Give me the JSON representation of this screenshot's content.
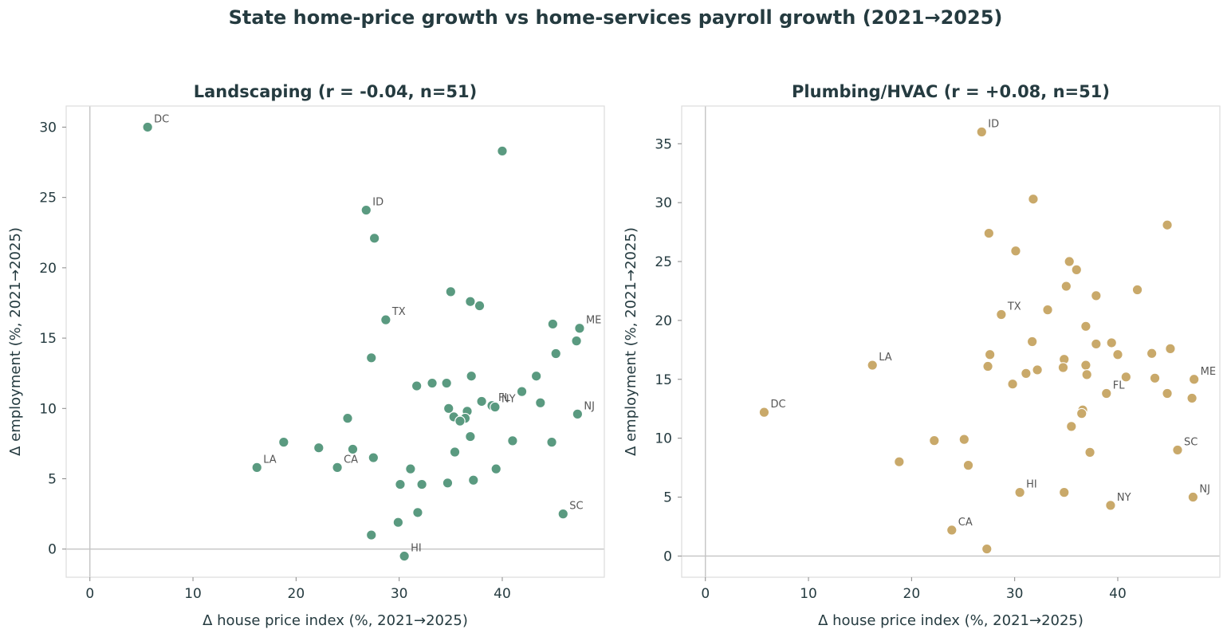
{
  "suptitle": "State home-price growth vs home-services payroll growth (2021→2025)",
  "chart_data": [
    {
      "type": "scatter",
      "title": "Landscaping  (r = -0.04, n=51)",
      "xlabel": "Δ house price index (%, 2021→2025)",
      "ylabel": "Δ employment (%, 2021→2025)",
      "xlim": [
        -2.3,
        49.9
      ],
      "ylim": [
        -2.0,
        31.5
      ],
      "xticks": [
        0,
        10,
        20,
        30,
        40
      ],
      "yticks": [
        0,
        5,
        10,
        15,
        20,
        25,
        30
      ],
      "color": "#5a9a80",
      "points": [
        {
          "x": 5.6,
          "y": 30.0,
          "label": "DC"
        },
        {
          "x": 40.0,
          "y": 28.3,
          "label": ""
        },
        {
          "x": 26.8,
          "y": 24.1,
          "label": "ID"
        },
        {
          "x": 27.6,
          "y": 22.1,
          "label": ""
        },
        {
          "x": 35.0,
          "y": 18.3,
          "label": ""
        },
        {
          "x": 36.9,
          "y": 17.6,
          "label": ""
        },
        {
          "x": 37.8,
          "y": 17.3,
          "label": ""
        },
        {
          "x": 28.7,
          "y": 16.3,
          "label": "TX"
        },
        {
          "x": 44.9,
          "y": 16.0,
          "label": ""
        },
        {
          "x": 47.5,
          "y": 15.7,
          "label": "ME"
        },
        {
          "x": 47.2,
          "y": 14.8,
          "label": ""
        },
        {
          "x": 45.2,
          "y": 13.9,
          "label": ""
        },
        {
          "x": 27.3,
          "y": 13.6,
          "label": ""
        },
        {
          "x": 43.3,
          "y": 12.3,
          "label": ""
        },
        {
          "x": 37.0,
          "y": 12.3,
          "label": ""
        },
        {
          "x": 33.2,
          "y": 11.8,
          "label": ""
        },
        {
          "x": 34.6,
          "y": 11.8,
          "label": ""
        },
        {
          "x": 31.7,
          "y": 11.6,
          "label": ""
        },
        {
          "x": 41.9,
          "y": 11.2,
          "label": ""
        },
        {
          "x": 38.0,
          "y": 10.5,
          "label": ""
        },
        {
          "x": 43.7,
          "y": 10.4,
          "label": ""
        },
        {
          "x": 39.0,
          "y": 10.2,
          "label": "FL"
        },
        {
          "x": 39.3,
          "y": 10.1,
          "label": "NY"
        },
        {
          "x": 34.8,
          "y": 10.0,
          "label": ""
        },
        {
          "x": 36.6,
          "y": 9.8,
          "label": ""
        },
        {
          "x": 47.3,
          "y": 9.6,
          "label": "NJ"
        },
        {
          "x": 35.3,
          "y": 9.4,
          "label": ""
        },
        {
          "x": 25.0,
          "y": 9.3,
          "label": ""
        },
        {
          "x": 36.4,
          "y": 9.3,
          "label": ""
        },
        {
          "x": 35.9,
          "y": 9.1,
          "label": ""
        },
        {
          "x": 36.9,
          "y": 8.0,
          "label": ""
        },
        {
          "x": 41.0,
          "y": 7.7,
          "label": ""
        },
        {
          "x": 18.8,
          "y": 7.6,
          "label": ""
        },
        {
          "x": 44.8,
          "y": 7.6,
          "label": ""
        },
        {
          "x": 22.2,
          "y": 7.2,
          "label": ""
        },
        {
          "x": 25.5,
          "y": 7.1,
          "label": ""
        },
        {
          "x": 35.4,
          "y": 6.9,
          "label": ""
        },
        {
          "x": 27.5,
          "y": 6.5,
          "label": ""
        },
        {
          "x": 16.2,
          "y": 5.8,
          "label": "LA"
        },
        {
          "x": 24.0,
          "y": 5.8,
          "label": "CA"
        },
        {
          "x": 39.4,
          "y": 5.7,
          "label": ""
        },
        {
          "x": 31.1,
          "y": 5.7,
          "label": ""
        },
        {
          "x": 37.2,
          "y": 4.9,
          "label": ""
        },
        {
          "x": 34.7,
          "y": 4.7,
          "label": ""
        },
        {
          "x": 32.2,
          "y": 4.6,
          "label": ""
        },
        {
          "x": 30.1,
          "y": 4.6,
          "label": ""
        },
        {
          "x": 31.8,
          "y": 2.6,
          "label": ""
        },
        {
          "x": 45.9,
          "y": 2.5,
          "label": "SC"
        },
        {
          "x": 29.9,
          "y": 1.9,
          "label": ""
        },
        {
          "x": 27.3,
          "y": 1.0,
          "label": ""
        },
        {
          "x": 30.5,
          "y": -0.5,
          "label": "HI"
        }
      ]
    },
    {
      "type": "scatter",
      "title": "Plumbing/HVAC  (r = +0.08, n=51)",
      "xlabel": "Δ house price index (%, 2021→2025)",
      "ylabel": "Δ employment (%, 2021→2025)",
      "xlim": [
        -2.3,
        49.9
      ],
      "ylim": [
        -1.8,
        38.2
      ],
      "xticks": [
        0,
        10,
        20,
        30,
        40
      ],
      "yticks": [
        0,
        5,
        10,
        15,
        20,
        25,
        30,
        35
      ],
      "color": "#c9a96a",
      "points": [
        {
          "x": 26.8,
          "y": 36.0,
          "label": "ID"
        },
        {
          "x": 31.8,
          "y": 30.3,
          "label": ""
        },
        {
          "x": 44.8,
          "y": 28.1,
          "label": ""
        },
        {
          "x": 27.5,
          "y": 27.4,
          "label": ""
        },
        {
          "x": 30.1,
          "y": 25.9,
          "label": ""
        },
        {
          "x": 35.3,
          "y": 25.0,
          "label": ""
        },
        {
          "x": 36.0,
          "y": 24.3,
          "label": ""
        },
        {
          "x": 35.0,
          "y": 22.9,
          "label": ""
        },
        {
          "x": 41.9,
          "y": 22.6,
          "label": ""
        },
        {
          "x": 37.9,
          "y": 22.1,
          "label": ""
        },
        {
          "x": 33.2,
          "y": 20.9,
          "label": ""
        },
        {
          "x": 28.7,
          "y": 20.5,
          "label": "TX"
        },
        {
          "x": 36.9,
          "y": 19.5,
          "label": ""
        },
        {
          "x": 31.7,
          "y": 18.2,
          "label": ""
        },
        {
          "x": 39.4,
          "y": 18.1,
          "label": ""
        },
        {
          "x": 37.9,
          "y": 18.0,
          "label": ""
        },
        {
          "x": 45.1,
          "y": 17.6,
          "label": ""
        },
        {
          "x": 43.3,
          "y": 17.2,
          "label": ""
        },
        {
          "x": 27.6,
          "y": 17.1,
          "label": ""
        },
        {
          "x": 40.0,
          "y": 17.1,
          "label": ""
        },
        {
          "x": 34.8,
          "y": 16.7,
          "label": ""
        },
        {
          "x": 16.2,
          "y": 16.2,
          "label": "LA"
        },
        {
          "x": 27.4,
          "y": 16.1,
          "label": ""
        },
        {
          "x": 36.9,
          "y": 16.2,
          "label": ""
        },
        {
          "x": 34.7,
          "y": 16.0,
          "label": ""
        },
        {
          "x": 32.2,
          "y": 15.8,
          "label": ""
        },
        {
          "x": 31.1,
          "y": 15.5,
          "label": ""
        },
        {
          "x": 37.0,
          "y": 15.4,
          "label": ""
        },
        {
          "x": 40.8,
          "y": 15.2,
          "label": ""
        },
        {
          "x": 43.6,
          "y": 15.1,
          "label": ""
        },
        {
          "x": 47.4,
          "y": 15.0,
          "label": "ME"
        },
        {
          "x": 29.8,
          "y": 14.6,
          "label": ""
        },
        {
          "x": 38.9,
          "y": 13.8,
          "label": "FL"
        },
        {
          "x": 44.8,
          "y": 13.8,
          "label": ""
        },
        {
          "x": 47.2,
          "y": 13.4,
          "label": ""
        },
        {
          "x": 5.7,
          "y": 12.2,
          "label": "DC"
        },
        {
          "x": 36.6,
          "y": 12.4,
          "label": ""
        },
        {
          "x": 36.5,
          "y": 12.1,
          "label": ""
        },
        {
          "x": 35.5,
          "y": 11.0,
          "label": ""
        },
        {
          "x": 25.1,
          "y": 9.9,
          "label": ""
        },
        {
          "x": 22.2,
          "y": 9.8,
          "label": ""
        },
        {
          "x": 45.8,
          "y": 9.0,
          "label": "SC"
        },
        {
          "x": 37.3,
          "y": 8.8,
          "label": ""
        },
        {
          "x": 18.8,
          "y": 8.0,
          "label": ""
        },
        {
          "x": 25.5,
          "y": 7.7,
          "label": ""
        },
        {
          "x": 30.5,
          "y": 5.4,
          "label": "HI"
        },
        {
          "x": 34.8,
          "y": 5.4,
          "label": ""
        },
        {
          "x": 47.3,
          "y": 5.0,
          "label": "NJ"
        },
        {
          "x": 39.3,
          "y": 4.3,
          "label": "NY"
        },
        {
          "x": 23.9,
          "y": 2.2,
          "label": "CA"
        },
        {
          "x": 27.3,
          "y": 0.6,
          "label": ""
        }
      ]
    }
  ]
}
